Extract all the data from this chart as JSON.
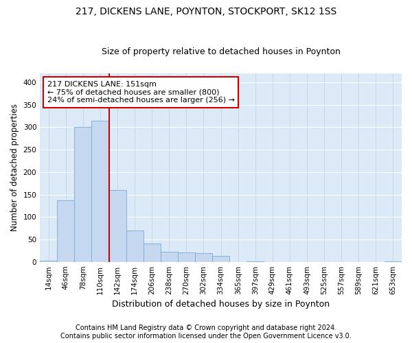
{
  "title1": "217, DICKENS LANE, POYNTON, STOCKPORT, SK12 1SS",
  "title2": "Size of property relative to detached houses in Poynton",
  "xlabel": "Distribution of detached houses by size in Poynton",
  "ylabel": "Number of detached properties",
  "footer1": "Contains HM Land Registry data © Crown copyright and database right 2024.",
  "footer2": "Contains public sector information licensed under the Open Government Licence v3.0.",
  "annotation_line1": "217 DICKENS LANE: 151sqm",
  "annotation_line2": "← 75% of detached houses are smaller (800)",
  "annotation_line3": "24% of semi-detached houses are larger (256) →",
  "bar_color": "#c5d8f0",
  "bar_edge_color": "#7aabd4",
  "vline_color": "#cc0000",
  "background_color": "#dce9f7",
  "grid_color": "#b8cee8",
  "categories": [
    "14sqm",
    "46sqm",
    "78sqm",
    "110sqm",
    "142sqm",
    "174sqm",
    "206sqm",
    "238sqm",
    "270sqm",
    "302sqm",
    "334sqm",
    "365sqm",
    "397sqm",
    "429sqm",
    "461sqm",
    "493sqm",
    "525sqm",
    "557sqm",
    "589sqm",
    "621sqm",
    "653sqm"
  ],
  "values": [
    3,
    137,
    300,
    315,
    160,
    70,
    40,
    22,
    21,
    20,
    13,
    0,
    1,
    0,
    0,
    0,
    0,
    0,
    0,
    0,
    1
  ],
  "ylim": [
    0,
    420
  ],
  "yticks": [
    0,
    50,
    100,
    150,
    200,
    250,
    300,
    350,
    400
  ],
  "vline_x": 3.5,
  "title1_fontsize": 10,
  "title2_fontsize": 9,
  "xlabel_fontsize": 9,
  "ylabel_fontsize": 8.5,
  "tick_fontsize": 7.5,
  "footer_fontsize": 7,
  "annotation_fontsize": 8
}
